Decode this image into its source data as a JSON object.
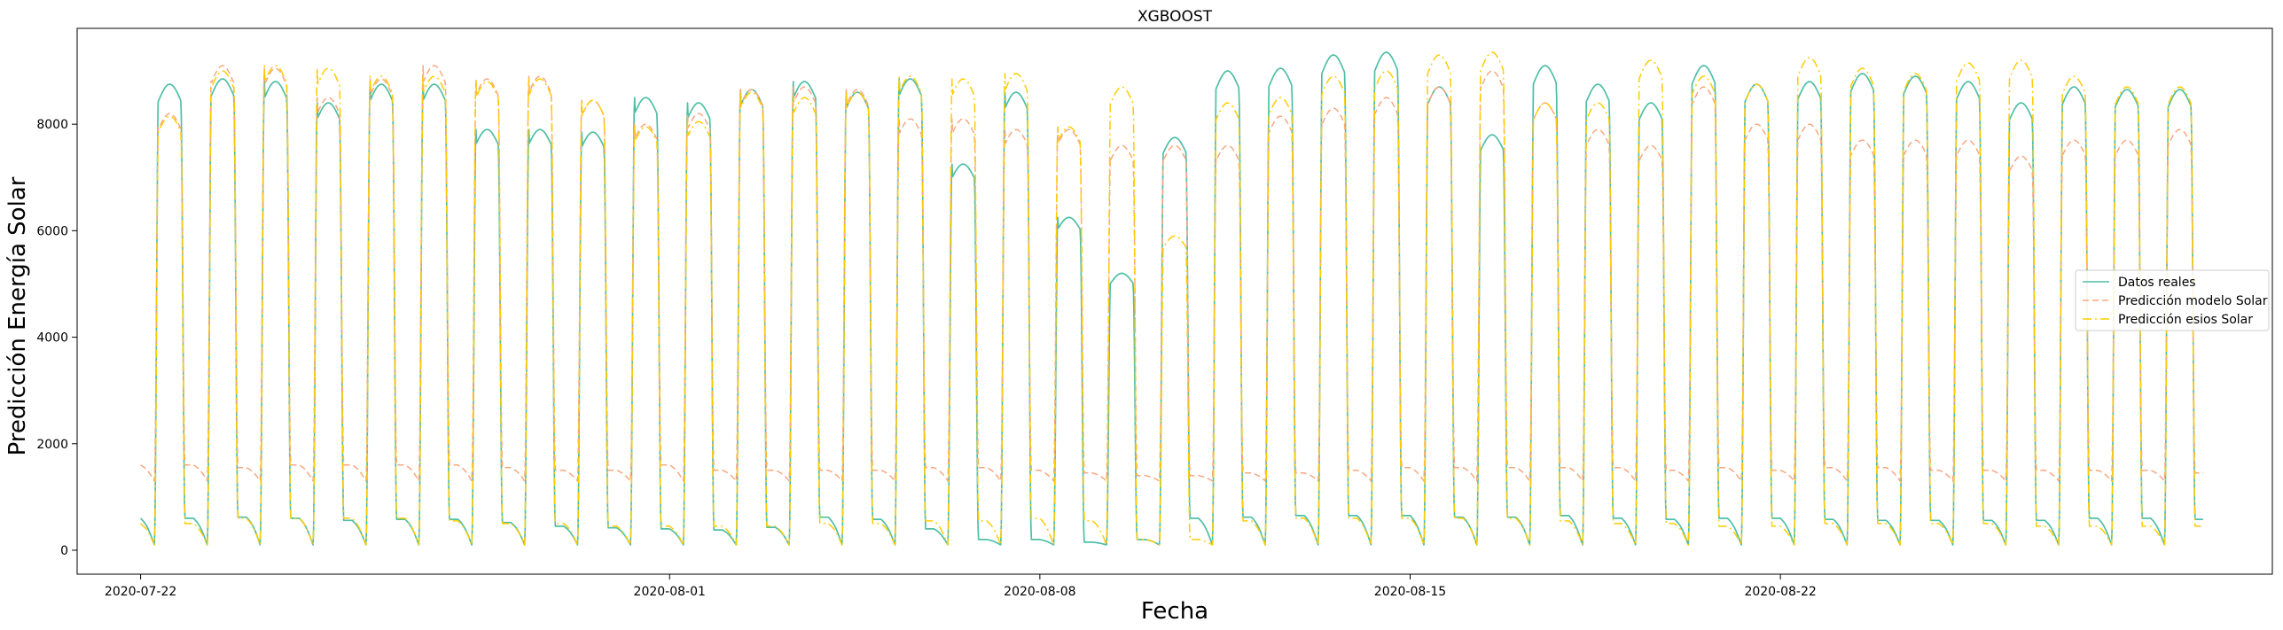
{
  "chart_data": {
    "type": "line",
    "title": "XGBOOST",
    "xlabel": "Fecha",
    "ylabel": "Predicción Energía Solar",
    "ylim": [
      -450,
      9800
    ],
    "xlim_days": [
      -1.2,
      40.3
    ],
    "start_date": "2020-07-22",
    "x_ticks": [
      {
        "day": 0,
        "label": "2020-07-22"
      },
      {
        "day": 10,
        "label": "2020-08-01"
      },
      {
        "day": 17,
        "label": "2020-08-08"
      },
      {
        "day": 24,
        "label": "2020-08-15"
      },
      {
        "day": 31,
        "label": "2020-08-22"
      }
    ],
    "y_ticks": [
      0,
      2000,
      4000,
      6000,
      8000
    ],
    "legend_position": "center-right",
    "series": [
      {
        "name": "Datos reales",
        "color": "#4fbfa5",
        "style": "solid",
        "daily_peaks": [
          8750,
          8850,
          8800,
          8400,
          8750,
          8750,
          7900,
          7900,
          7850,
          8500,
          8400,
          8650,
          8800,
          8600,
          8850,
          7250,
          8600,
          6250,
          5200,
          7750,
          9000,
          9050,
          9300,
          9350,
          8700,
          7800,
          9100,
          8750,
          8400,
          9100,
          8750,
          8800,
          8950,
          8900,
          8800,
          8400,
          8700,
          8650,
          8650
        ],
        "daily_night": [
          600,
          620,
          600,
          560,
          580,
          580,
          520,
          450,
          420,
          400,
          380,
          430,
          620,
          580,
          400,
          200,
          200,
          150,
          200,
          600,
          620,
          650,
          650,
          650,
          620,
          620,
          650,
          600,
          580,
          600,
          600,
          580,
          560,
          560,
          560,
          560,
          600,
          600,
          580
        ],
        "night_min": 100
      },
      {
        "name": "Predicción modelo Solar",
        "color": "#f7a880",
        "style": "dashed",
        "daily_peaks": [
          8200,
          9100,
          9050,
          8500,
          8850,
          9100,
          8850,
          8900,
          8450,
          8000,
          8200,
          8650,
          8700,
          8650,
          8100,
          8100,
          7900,
          7900,
          7600,
          7600,
          7600,
          8150,
          8300,
          8500,
          8700,
          9000,
          8400,
          7900,
          7600,
          8700,
          8000,
          8000,
          7700,
          7700,
          7700,
          7400,
          7700,
          7700,
          7900
        ],
        "daily_night": [
          1600,
          1550,
          1600,
          1600,
          1600,
          1600,
          1550,
          1500,
          1500,
          1600,
          1500,
          1500,
          1500,
          1500,
          1550,
          1550,
          1500,
          1450,
          1400,
          1400,
          1450,
          1450,
          1500,
          1550,
          1550,
          1550,
          1550,
          1550,
          1500,
          1550,
          1500,
          1550,
          1550,
          1500,
          1500,
          1500,
          1500,
          1500,
          1450
        ],
        "night_min": 1300
      },
      {
        "name": "Predicción esios Solar",
        "color": "#ffcc00",
        "style": "dashdot",
        "daily_peaks": [
          8150,
          9000,
          9100,
          9050,
          8900,
          8900,
          8800,
          8850,
          8450,
          7950,
          8050,
          8600,
          8500,
          8600,
          8900,
          8850,
          8950,
          7950,
          8700,
          5900,
          8400,
          8500,
          8900,
          9000,
          9300,
          9350,
          8400,
          8400,
          9200,
          8900,
          8750,
          9250,
          9050,
          8950,
          9150,
          9200,
          8900,
          8700,
          8700
        ],
        "daily_night": [
          500,
          600,
          600,
          600,
          600,
          550,
          500,
          500,
          450,
          450,
          450,
          450,
          500,
          500,
          550,
          550,
          600,
          550,
          200,
          200,
          550,
          600,
          600,
          600,
          600,
          600,
          550,
          500,
          500,
          450,
          450,
          500,
          500,
          500,
          500,
          450,
          450,
          450,
          450
        ],
        "night_min": 100
      }
    ]
  }
}
